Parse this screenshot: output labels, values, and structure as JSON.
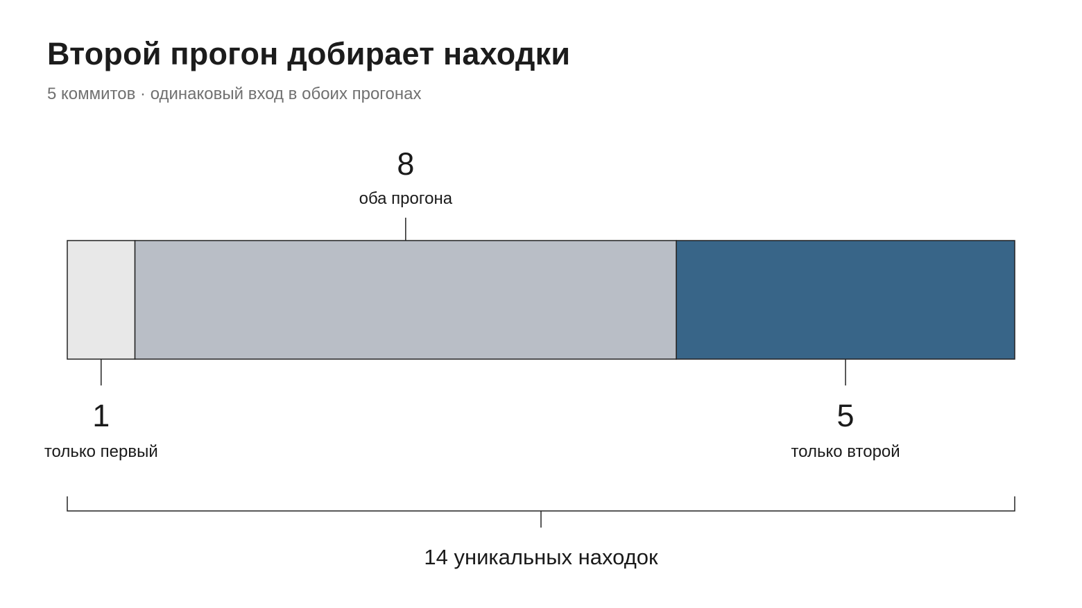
{
  "header": {
    "title": "Второй прогон добирает находки",
    "subtitle": "5 коммитов · одинаковый вход в обоих прогонах"
  },
  "colors": {
    "only_first": "#e8e8e8",
    "both": "#b9bec6",
    "only_second": "#386588",
    "outline": "#222222"
  },
  "chart_data": {
    "type": "bar",
    "orientation": "horizontal-stacked",
    "title": "Второй прогон добирает находки",
    "subtitle": "5 коммитов · одинаковый вход в обоих прогонах",
    "categories": [
      "только первый",
      "оба прогона",
      "только второй"
    ],
    "values": [
      1,
      8,
      5
    ],
    "value_labels": [
      "1",
      "8",
      "5"
    ],
    "label_positions": [
      "below",
      "above",
      "below"
    ],
    "total": 14,
    "total_label": "14 уникальных находок"
  }
}
